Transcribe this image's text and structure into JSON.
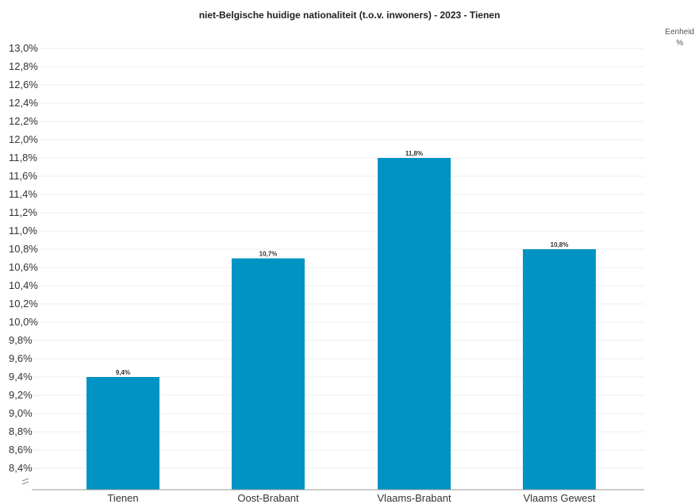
{
  "chart_data": {
    "type": "bar",
    "title": "niet-Belgische huidige nationaliteit (t.o.v. inwoners) - 2023 - Tienen",
    "unit_label": "Eenheid",
    "unit_value": "%",
    "categories": [
      "Tienen",
      "Oost-Brabant",
      "Vlaams-Brabant",
      "Vlaams Gewest"
    ],
    "values": [
      9.4,
      10.7,
      11.8,
      10.8
    ],
    "value_labels": [
      "9,4%",
      "10,7%",
      "11,8%",
      "10,8%"
    ],
    "ylim": [
      8.2,
      13.0
    ],
    "yticks": [
      8.4,
      8.6,
      8.8,
      9.0,
      9.2,
      9.4,
      9.6,
      9.8,
      10.0,
      10.2,
      10.4,
      10.6,
      10.8,
      11.0,
      11.2,
      11.4,
      11.6,
      11.8,
      12.0,
      12.2,
      12.4,
      12.6,
      12.8,
      13.0
    ],
    "ytick_labels": [
      "8,4%",
      "8,6%",
      "8,8%",
      "9,0%",
      "9,2%",
      "9,4%",
      "9,6%",
      "9,8%",
      "10,0%",
      "10,2%",
      "10,4%",
      "10,6%",
      "10,8%",
      "11,0%",
      "11,2%",
      "11,4%",
      "11,6%",
      "11,8%",
      "12,0%",
      "12,2%",
      "12,4%",
      "12,6%",
      "12,8%",
      "13,0%"
    ],
    "axis_break": true,
    "bar_color": "#0093c4",
    "grid": true,
    "legend": "none"
  }
}
